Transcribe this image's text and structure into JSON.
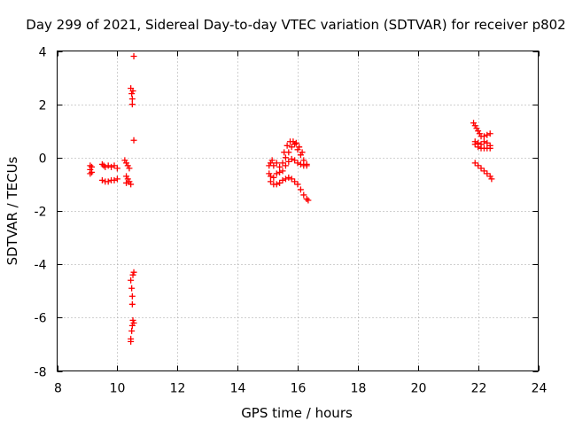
{
  "chart_data": {
    "type": "scatter",
    "title": "Day 299 of 2021, Sidereal Day-to-day VTEC variation (SDTVAR) for receiver p802",
    "xlabel": "GPS time / hours",
    "ylabel": "SDTVAR / TECUs",
    "xlim": [
      8,
      24
    ],
    "ylim": [
      -8,
      4
    ],
    "xticks": [
      8,
      10,
      12,
      14,
      16,
      18,
      20,
      22,
      24
    ],
    "yticks": [
      -8,
      -6,
      -4,
      -2,
      0,
      2,
      4
    ],
    "grid": true,
    "marker": "plus",
    "color": "#ff0000",
    "series": [
      {
        "points": [
          [
            9.1,
            -0.3
          ],
          [
            9.1,
            -0.45
          ],
          [
            9.1,
            -0.6
          ],
          [
            9.15,
            -0.35
          ],
          [
            9.15,
            -0.55
          ],
          [
            9.5,
            -0.25
          ],
          [
            9.55,
            -0.3
          ],
          [
            9.6,
            -0.35
          ],
          [
            9.7,
            -0.3
          ],
          [
            9.8,
            -0.35
          ],
          [
            9.9,
            -0.3
          ],
          [
            10.0,
            -0.4
          ],
          [
            9.5,
            -0.85
          ],
          [
            9.6,
            -0.9
          ],
          [
            9.7,
            -0.9
          ],
          [
            9.8,
            -0.85
          ],
          [
            9.9,
            -0.85
          ],
          [
            10.0,
            -0.8
          ],
          [
            10.25,
            -0.1
          ],
          [
            10.3,
            -0.2
          ],
          [
            10.35,
            -0.3
          ],
          [
            10.4,
            -0.4
          ],
          [
            10.3,
            -0.7
          ],
          [
            10.35,
            -0.8
          ],
          [
            10.4,
            -0.9
          ],
          [
            10.45,
            -1.0
          ],
          [
            10.3,
            -0.95
          ],
          [
            10.45,
            2.6
          ],
          [
            10.48,
            2.4
          ],
          [
            10.5,
            2.2
          ],
          [
            10.5,
            2.0
          ],
          [
            10.52,
            2.5
          ],
          [
            10.55,
            3.8
          ],
          [
            10.55,
            0.65
          ],
          [
            10.45,
            -4.6
          ],
          [
            10.48,
            -4.9
          ],
          [
            10.5,
            -5.2
          ],
          [
            10.5,
            -5.5
          ],
          [
            10.52,
            -4.4
          ],
          [
            10.55,
            -4.3
          ],
          [
            10.45,
            -6.8
          ],
          [
            10.48,
            -6.5
          ],
          [
            10.5,
            -6.3
          ],
          [
            10.52,
            -6.1
          ],
          [
            10.55,
            -6.2
          ],
          [
            10.45,
            -6.9
          ],
          [
            15.05,
            -0.3
          ],
          [
            15.1,
            -0.2
          ],
          [
            15.15,
            -0.1
          ],
          [
            15.2,
            -0.3
          ],
          [
            15.3,
            -0.2
          ],
          [
            15.4,
            -0.35
          ],
          [
            15.5,
            -0.2
          ],
          [
            15.6,
            0.0
          ],
          [
            15.7,
            0.2
          ],
          [
            15.8,
            0.4
          ],
          [
            15.9,
            0.5
          ],
          [
            16.0,
            0.3
          ],
          [
            16.1,
            0.1
          ],
          [
            16.2,
            -0.1
          ],
          [
            16.3,
            -0.25
          ],
          [
            15.05,
            -0.6
          ],
          [
            15.1,
            -0.7
          ],
          [
            15.2,
            -0.75
          ],
          [
            15.3,
            -0.6
          ],
          [
            15.4,
            -0.55
          ],
          [
            15.5,
            -0.5
          ],
          [
            15.6,
            -0.3
          ],
          [
            15.7,
            -0.15
          ],
          [
            15.8,
            -0.05
          ],
          [
            15.9,
            -0.1
          ],
          [
            16.0,
            -0.2
          ],
          [
            16.1,
            -0.25
          ],
          [
            16.2,
            -0.3
          ],
          [
            16.3,
            -0.3
          ],
          [
            15.1,
            -0.9
          ],
          [
            15.2,
            -1.0
          ],
          [
            15.3,
            -1.0
          ],
          [
            15.4,
            -0.95
          ],
          [
            15.5,
            -0.85
          ],
          [
            15.6,
            -0.8
          ],
          [
            15.7,
            -0.75
          ],
          [
            15.8,
            -0.8
          ],
          [
            15.9,
            -0.9
          ],
          [
            16.0,
            -1.0
          ],
          [
            16.1,
            -1.2
          ],
          [
            16.2,
            -1.4
          ],
          [
            16.3,
            -1.55
          ],
          [
            16.35,
            -1.6
          ],
          [
            15.55,
            0.2
          ],
          [
            15.65,
            0.45
          ],
          [
            15.75,
            0.6
          ],
          [
            15.85,
            0.6
          ],
          [
            15.95,
            0.55
          ],
          [
            16.05,
            0.4
          ],
          [
            16.15,
            0.2
          ],
          [
            21.85,
            1.3
          ],
          [
            21.9,
            1.2
          ],
          [
            21.95,
            1.1
          ],
          [
            22.0,
            1.0
          ],
          [
            22.05,
            0.9
          ],
          [
            22.1,
            0.8
          ],
          [
            22.2,
            0.8
          ],
          [
            22.3,
            0.85
          ],
          [
            22.4,
            0.9
          ],
          [
            21.9,
            0.6
          ],
          [
            22.0,
            0.55
          ],
          [
            22.1,
            0.5
          ],
          [
            22.2,
            0.6
          ],
          [
            22.3,
            0.55
          ],
          [
            22.4,
            0.45
          ],
          [
            21.9,
            0.5
          ],
          [
            22.0,
            0.4
          ],
          [
            22.1,
            0.35
          ],
          [
            22.2,
            0.35
          ],
          [
            22.3,
            0.35
          ],
          [
            22.4,
            0.35
          ],
          [
            21.9,
            -0.2
          ],
          [
            22.0,
            -0.3
          ],
          [
            22.1,
            -0.4
          ],
          [
            22.2,
            -0.5
          ],
          [
            22.3,
            -0.6
          ],
          [
            22.4,
            -0.7
          ],
          [
            22.45,
            -0.8
          ]
        ]
      }
    ]
  }
}
